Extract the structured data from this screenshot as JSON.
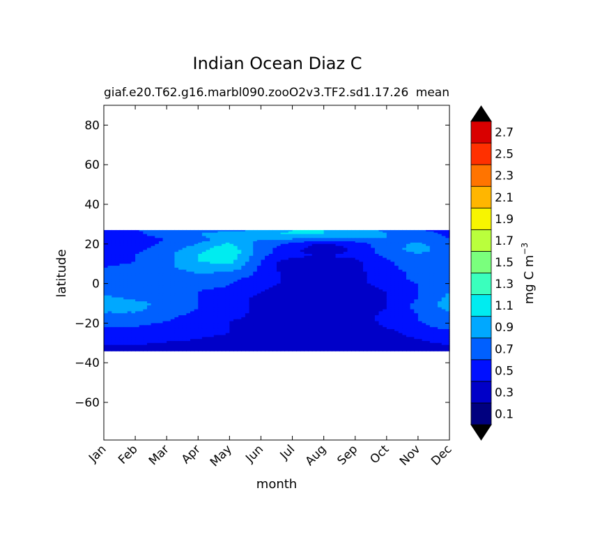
{
  "chart_data": {
    "type": "heatmap",
    "title": "Indian Ocean Diaz C",
    "subtitle_left": "giaf.e20.T62.g16.marbl090.zooO2v3.TF2.sd1.17.26",
    "subtitle_right": "mean",
    "xlabel": "month",
    "ylabel": "latitude",
    "x_ticks": [
      "Jan",
      "Feb",
      "Mar",
      "Apr",
      "May",
      "Jun",
      "Jul",
      "Aug",
      "Sep",
      "Oct",
      "Nov",
      "Dec"
    ],
    "xlim": [
      0,
      11
    ],
    "y_ticks": [
      80,
      60,
      40,
      20,
      0,
      -20,
      -40,
      -60
    ],
    "y_tick_labels": [
      "80",
      "60",
      "40",
      "20",
      "0",
      "−20",
      "−40",
      "−60"
    ],
    "ylim": [
      -79,
      90
    ],
    "data_lat_range": [
      -34,
      27
    ],
    "colorbar": {
      "label_main": "mg C m",
      "label_exp": "−3",
      "extend": "both",
      "levels": [
        0,
        0.2,
        0.4,
        0.6,
        0.8,
        1.0,
        1.2,
        1.4,
        1.6,
        1.8,
        2.0,
        2.2,
        2.4,
        2.6,
        2.8
      ],
      "tick_values": [
        0.1,
        0.3,
        0.5,
        0.7,
        0.9,
        1.1,
        1.3,
        1.5,
        1.7,
        1.9,
        2.1,
        2.3,
        2.5,
        2.7
      ],
      "tick_labels": [
        "0.1",
        "0.3",
        "0.5",
        "0.7",
        "0.9",
        "1.1",
        "1.3",
        "1.5",
        "1.7",
        "1.9",
        "2.1",
        "2.3",
        "2.5",
        "2.7"
      ],
      "colors": [
        "#00007f",
        "#0000c8",
        "#0010ff",
        "#0060ff",
        "#00a8ff",
        "#00ecf0",
        "#3affbd",
        "#7aff7d",
        "#baff3c",
        "#f8f500",
        "#ffb600",
        "#ff7400",
        "#ff3000",
        "#d90000",
        "#7f0000"
      ],
      "under_color": "#000000",
      "over_color": "#000000"
    },
    "field": {
      "lats": [
        27,
        25,
        22,
        20,
        17,
        14,
        11,
        8,
        5,
        2,
        -1,
        -4,
        -7,
        -10,
        -13,
        -16,
        -19,
        -22,
        -25,
        -28,
        -31,
        -34
      ],
      "rows": [
        [
          0.55,
          0.6,
          0.65,
          0.7,
          0.75,
          0.8,
          1.0,
          1.0,
          0.9,
          0.75,
          0.6,
          0.55
        ],
        [
          0.5,
          0.55,
          0.7,
          0.8,
          0.9,
          0.95,
          1.05,
          1.0,
          0.95,
          0.8,
          0.7,
          0.55
        ],
        [
          0.45,
          0.5,
          0.6,
          0.75,
          0.85,
          0.8,
          0.75,
          0.7,
          0.7,
          0.8,
          0.75,
          0.6
        ],
        [
          0.45,
          0.5,
          0.65,
          0.8,
          1.05,
          0.7,
          0.55,
          0.35,
          0.5,
          0.7,
          0.85,
          0.65
        ],
        [
          0.45,
          0.55,
          0.7,
          0.95,
          1.15,
          0.7,
          0.45,
          0.25,
          0.45,
          0.7,
          0.9,
          0.65
        ],
        [
          0.55,
          0.6,
          0.75,
          1.0,
          1.15,
          0.65,
          0.45,
          0.4,
          0.45,
          0.65,
          0.75,
          0.65
        ],
        [
          0.55,
          0.6,
          0.75,
          1.0,
          1.05,
          0.6,
          0.25,
          0.25,
          0.35,
          0.55,
          0.75,
          0.7
        ],
        [
          0.6,
          0.65,
          0.75,
          0.9,
          0.95,
          0.55,
          0.25,
          0.2,
          0.35,
          0.55,
          0.7,
          0.75
        ],
        [
          0.6,
          0.65,
          0.7,
          0.8,
          0.75,
          0.55,
          0.3,
          0.25,
          0.35,
          0.5,
          0.65,
          0.75
        ],
        [
          0.6,
          0.65,
          0.7,
          0.7,
          0.65,
          0.5,
          0.35,
          0.3,
          0.35,
          0.5,
          0.65,
          0.75
        ],
        [
          0.6,
          0.6,
          0.65,
          0.65,
          0.6,
          0.45,
          0.35,
          0.3,
          0.35,
          0.45,
          0.6,
          0.75
        ],
        [
          0.7,
          0.65,
          0.65,
          0.6,
          0.55,
          0.4,
          0.3,
          0.3,
          0.3,
          0.4,
          0.6,
          0.8
        ],
        [
          0.85,
          0.75,
          0.7,
          0.6,
          0.5,
          0.35,
          0.3,
          0.3,
          0.3,
          0.4,
          0.6,
          0.85
        ],
        [
          0.95,
          0.85,
          0.75,
          0.6,
          0.5,
          0.35,
          0.3,
          0.3,
          0.3,
          0.4,
          0.65,
          0.9
        ],
        [
          0.85,
          0.85,
          0.7,
          0.6,
          0.5,
          0.35,
          0.3,
          0.3,
          0.3,
          0.4,
          0.65,
          0.85
        ],
        [
          0.75,
          0.75,
          0.65,
          0.55,
          0.45,
          0.35,
          0.3,
          0.3,
          0.3,
          0.45,
          0.6,
          0.75
        ],
        [
          0.65,
          0.65,
          0.6,
          0.5,
          0.4,
          0.35,
          0.3,
          0.3,
          0.3,
          0.45,
          0.6,
          0.7
        ],
        [
          0.6,
          0.6,
          0.55,
          0.45,
          0.4,
          0.35,
          0.3,
          0.3,
          0.3,
          0.4,
          0.55,
          0.65
        ],
        [
          0.55,
          0.55,
          0.5,
          0.45,
          0.4,
          0.35,
          0.3,
          0.3,
          0.3,
          0.35,
          0.45,
          0.55
        ],
        [
          0.45,
          0.5,
          0.45,
          0.4,
          0.35,
          0.3,
          0.3,
          0.3,
          0.3,
          0.35,
          0.4,
          0.5
        ],
        [
          0.4,
          0.4,
          0.35,
          0.35,
          0.35,
          0.3,
          0.3,
          0.3,
          0.3,
          0.3,
          0.35,
          0.4
        ],
        [
          0.35,
          0.35,
          0.35,
          0.35,
          0.3,
          0.3,
          0.3,
          0.25,
          0.3,
          0.3,
          0.3,
          0.35
        ]
      ]
    }
  }
}
